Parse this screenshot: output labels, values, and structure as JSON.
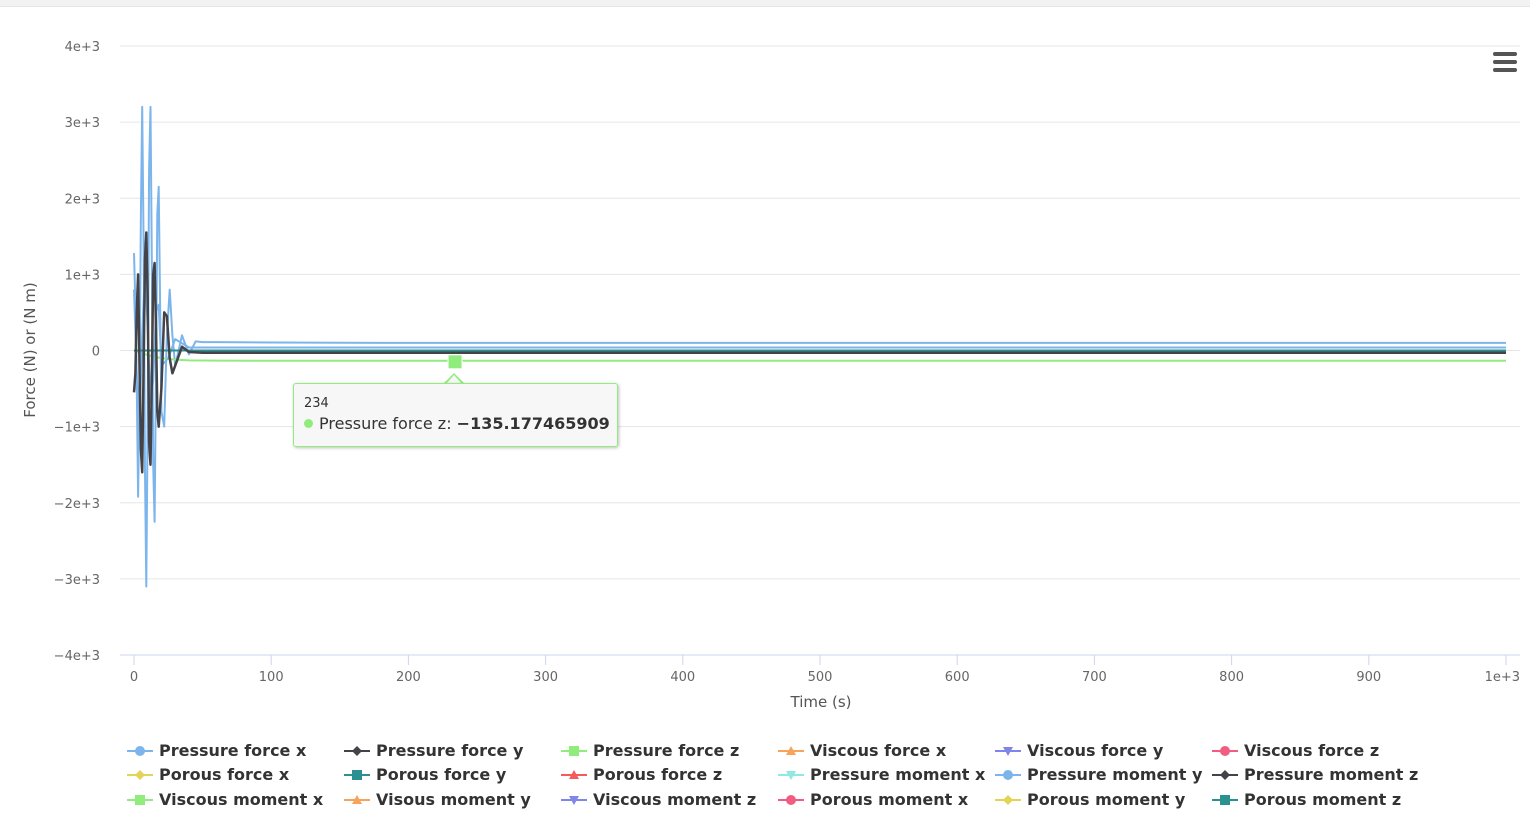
{
  "chart_data": {
    "type": "line",
    "xlabel": "Time (s)",
    "ylabel": "Force (N) or (N m)",
    "xlim": [
      0,
      1000
    ],
    "ylim": [
      -4000,
      4000
    ],
    "x_ticks": [
      {
        "value": 0,
        "label": "0"
      },
      {
        "value": 100,
        "label": "100"
      },
      {
        "value": 200,
        "label": "200"
      },
      {
        "value": 300,
        "label": "300"
      },
      {
        "value": 400,
        "label": "400"
      },
      {
        "value": 500,
        "label": "500"
      },
      {
        "value": 600,
        "label": "600"
      },
      {
        "value": 700,
        "label": "700"
      },
      {
        "value": 800,
        "label": "800"
      },
      {
        "value": 900,
        "label": "900"
      },
      {
        "value": 1000,
        "label": "1e+3"
      }
    ],
    "y_ticks": [
      {
        "value": 4000,
        "label": "4e+3"
      },
      {
        "value": 3000,
        "label": "3e+3"
      },
      {
        "value": 2000,
        "label": "2e+3"
      },
      {
        "value": 1000,
        "label": "1e+3"
      },
      {
        "value": 0,
        "label": "0"
      },
      {
        "value": -1000,
        "label": "−1e+3"
      },
      {
        "value": -2000,
        "label": "−2e+3"
      },
      {
        "value": -3000,
        "label": "−3e+3"
      },
      {
        "value": -4000,
        "label": "−4e+3"
      }
    ],
    "grid": true,
    "legend_position": "bottom",
    "series": [
      {
        "name": "Pressure force x",
        "color": "#7cb5ec",
        "marker": "circle",
        "x": [
          0,
          1,
          2,
          3,
          4,
          5,
          6,
          7,
          8,
          9,
          10,
          11,
          12,
          13,
          14,
          15,
          16,
          17,
          18,
          20,
          22,
          24,
          26,
          28,
          30,
          35,
          40,
          45,
          50,
          60,
          100,
          200,
          300,
          500,
          700,
          1000
        ],
        "y": [
          1280,
          600,
          -400,
          -1920,
          -600,
          1800,
          3200,
          1400,
          -1600,
          -3100,
          -800,
          2400,
          3200,
          1200,
          -1500,
          -2250,
          -300,
          1800,
          2150,
          -800,
          -1000,
          200,
          800,
          200,
          -200,
          200,
          -50,
          120,
          110,
          110,
          105,
          100,
          100,
          100,
          100,
          100
        ]
      },
      {
        "name": "Pressure force y",
        "color": "#434348",
        "marker": "diamond",
        "x": [
          0,
          1,
          2,
          3,
          4,
          5,
          6,
          7,
          8,
          9,
          10,
          11,
          12,
          13,
          14,
          15,
          16,
          17,
          18,
          20,
          22,
          24,
          26,
          28,
          30,
          35,
          40,
          50,
          100,
          1000
        ],
        "y": [
          -550,
          -300,
          500,
          1000,
          -200,
          -1300,
          -1600,
          -200,
          1200,
          1550,
          700,
          -1200,
          -1500,
          -400,
          1000,
          1150,
          300,
          -800,
          -1000,
          -500,
          500,
          450,
          -100,
          -300,
          -200,
          50,
          -20,
          -30,
          -30,
          -30
        ]
      },
      {
        "name": "Pressure force z",
        "color": "#90ed7d",
        "marker": "square",
        "x": [
          0,
          10,
          20,
          30,
          40,
          60,
          100,
          234,
          500,
          1000
        ],
        "y": [
          0,
          -60,
          -100,
          -120,
          -130,
          -133,
          -135,
          -135.177465909,
          -135,
          -135
        ]
      },
      {
        "name": "Viscous force x",
        "color": "#f7a35c",
        "marker": "triangle",
        "x": [
          0,
          1000
        ],
        "y": [
          0,
          0
        ]
      },
      {
        "name": "Viscous force y",
        "color": "#8085e9",
        "marker": "triangle-down",
        "x": [
          0,
          1000
        ],
        "y": [
          0,
          0
        ]
      },
      {
        "name": "Viscous force z",
        "color": "#f15c80",
        "marker": "circle",
        "x": [
          0,
          1000
        ],
        "y": [
          0,
          0
        ]
      },
      {
        "name": "Porous force x",
        "color": "#e4d354",
        "marker": "diamond",
        "x": [
          0,
          1000
        ],
        "y": [
          0,
          0
        ]
      },
      {
        "name": "Porous force y",
        "color": "#2b908f",
        "marker": "square",
        "x": [
          0,
          1000
        ],
        "y": [
          0,
          0
        ]
      },
      {
        "name": "Porous force z",
        "color": "#f45b5b",
        "marker": "triangle",
        "x": [
          0,
          1000
        ],
        "y": [
          0,
          0
        ]
      },
      {
        "name": "Pressure moment x",
        "color": "#91e8e1",
        "marker": "triangle-down",
        "x": [
          0,
          1000
        ],
        "y": [
          0,
          0
        ]
      },
      {
        "name": "Pressure moment y",
        "color": "#7cb5ec",
        "marker": "circle",
        "x": [
          0,
          2,
          4,
          6,
          8,
          10,
          12,
          14,
          16,
          18,
          20,
          25,
          30,
          40,
          50,
          100,
          1000
        ],
        "y": [
          800,
          -300,
          -1000,
          200,
          1100,
          300,
          -700,
          -400,
          500,
          600,
          -200,
          -100,
          150,
          40,
          40,
          40,
          40
        ]
      },
      {
        "name": "Pressure moment z",
        "color": "#434348",
        "marker": "diamond",
        "x": [
          0,
          1000
        ],
        "y": [
          0,
          0
        ]
      },
      {
        "name": "Viscous moment x",
        "color": "#90ed7d",
        "marker": "square",
        "x": [
          0,
          1000
        ],
        "y": [
          0,
          0
        ]
      },
      {
        "name": "Visous moment y",
        "color": "#f7a35c",
        "marker": "triangle",
        "x": [
          0,
          1000
        ],
        "y": [
          0,
          0
        ]
      },
      {
        "name": "Viscous moment z",
        "color": "#8085e9",
        "marker": "triangle-down",
        "x": [
          0,
          1000
        ],
        "y": [
          0,
          0
        ]
      },
      {
        "name": "Porous moment x",
        "color": "#f15c80",
        "marker": "circle",
        "x": [
          0,
          1000
        ],
        "y": [
          0,
          0
        ]
      },
      {
        "name": "Porous moment y",
        "color": "#e4d354",
        "marker": "diamond",
        "x": [
          0,
          1000
        ],
        "y": [
          0,
          0
        ]
      },
      {
        "name": "Porous moment z",
        "color": "#2b908f",
        "marker": "square",
        "x": [
          0,
          1000
        ],
        "y": [
          0,
          0
        ]
      }
    ],
    "tooltip": {
      "x_label": "234",
      "series_name": "Pressure force z",
      "value_text": "−135.177465909",
      "x": 234,
      "y": -135.177465909
    }
  },
  "menu": {
    "icon": "hamburger-menu-icon"
  }
}
